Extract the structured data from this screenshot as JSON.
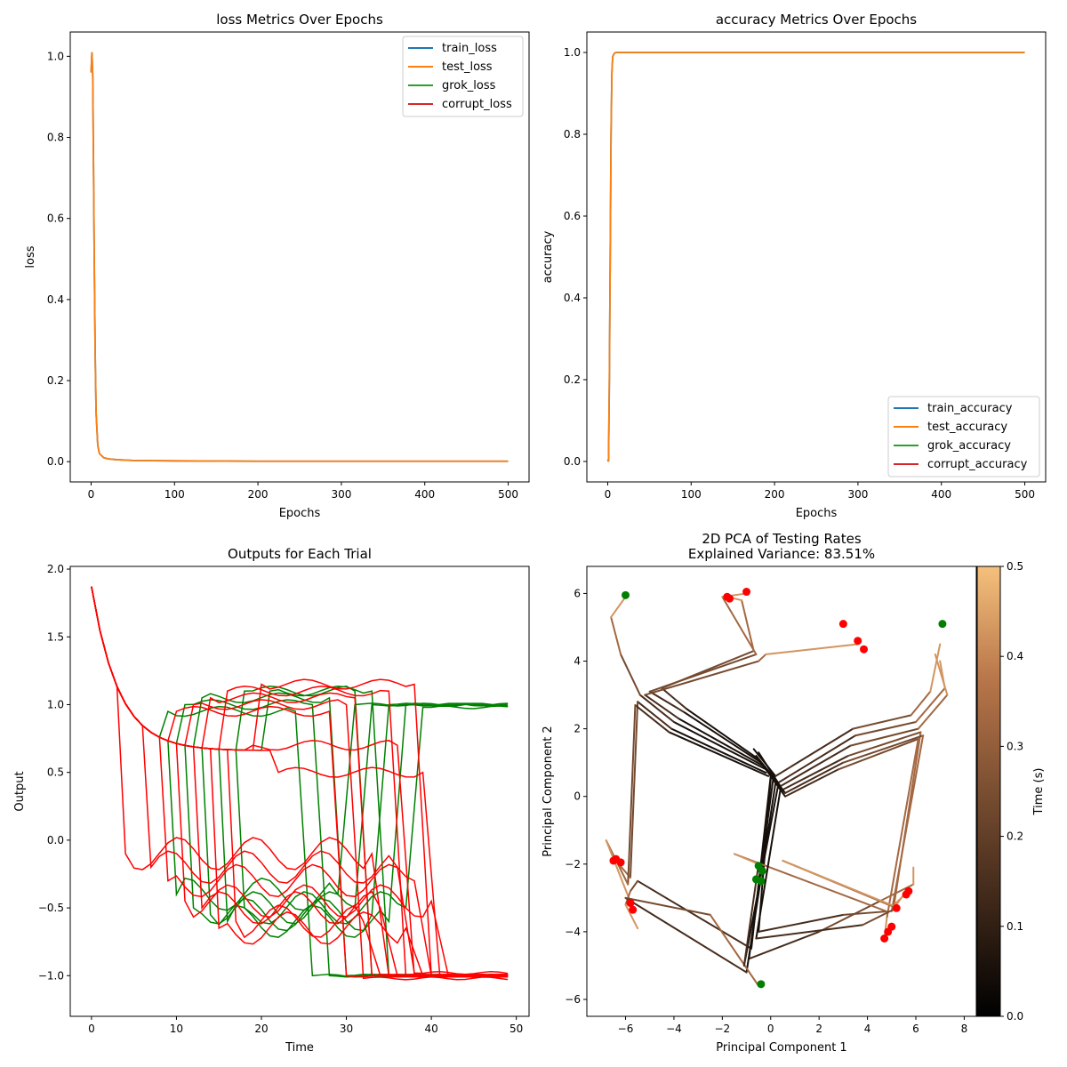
{
  "colors": {
    "train": "#1f77b4",
    "test": "#ff7f0e",
    "grok": "#2ca02c",
    "corrupt": "#d62728",
    "green_trial": "#008000",
    "red_trial": "#ff0000"
  },
  "chart_data": [
    {
      "type": "line",
      "title": "loss Metrics Over Epochs",
      "xlabel": "Epochs",
      "ylabel": "loss",
      "xlim": [
        -25,
        525
      ],
      "ylim": [
        -0.05,
        1.06
      ],
      "xticks": [
        0,
        100,
        200,
        300,
        400,
        500
      ],
      "yticks": [
        0.0,
        0.2,
        0.4,
        0.6,
        0.8,
        1.0
      ],
      "legend_position": "top-right",
      "series": [
        {
          "name": "train_loss",
          "color_key": "train",
          "x": [
            0,
            1,
            2,
            3,
            4,
            5,
            6,
            8,
            10,
            15,
            20,
            30,
            50,
            100,
            200,
            300,
            400,
            500
          ],
          "y": [
            0.96,
            1.01,
            0.95,
            0.7,
            0.45,
            0.25,
            0.12,
            0.04,
            0.02,
            0.01,
            0.007,
            0.005,
            0.003,
            0.002,
            0.001,
            0.001,
            0.001,
            0.001
          ]
        },
        {
          "name": "test_loss",
          "color_key": "test",
          "x": [
            0,
            1,
            2,
            3,
            4,
            5,
            6,
            8,
            10,
            15,
            20,
            30,
            50,
            100,
            200,
            300,
            400,
            500
          ],
          "y": [
            0.96,
            1.01,
            0.95,
            0.7,
            0.45,
            0.25,
            0.12,
            0.04,
            0.02,
            0.01,
            0.007,
            0.005,
            0.003,
            0.002,
            0.001,
            0.001,
            0.001,
            0.001
          ]
        },
        {
          "name": "grok_loss",
          "color_key": "grok",
          "x": [],
          "y": []
        },
        {
          "name": "corrupt_loss",
          "color_key": "corrupt",
          "x": [],
          "y": []
        }
      ]
    },
    {
      "type": "line",
      "title": "accuracy Metrics Over Epochs",
      "xlabel": "Epochs",
      "ylabel": "accuracy",
      "xlim": [
        -25,
        525
      ],
      "ylim": [
        -0.05,
        1.05
      ],
      "xticks": [
        0,
        100,
        200,
        300,
        400,
        500
      ],
      "yticks": [
        0.0,
        0.2,
        0.4,
        0.6,
        0.8,
        1.0
      ],
      "legend_position": "lower-right",
      "series": [
        {
          "name": "train_accuracy",
          "color_key": "train",
          "x": [
            0,
            1,
            2,
            3,
            4,
            5,
            6,
            8,
            10,
            15,
            20,
            50,
            100,
            500
          ],
          "y": [
            0.005,
            0.0,
            0.2,
            0.5,
            0.8,
            0.95,
            0.99,
            0.998,
            1.0,
            1.0,
            1.0,
            1.0,
            1.0,
            1.0
          ]
        },
        {
          "name": "test_accuracy",
          "color_key": "test",
          "x": [
            0,
            1,
            2,
            3,
            4,
            5,
            6,
            8,
            10,
            15,
            20,
            50,
            100,
            500
          ],
          "y": [
            0.005,
            0.0,
            0.2,
            0.5,
            0.8,
            0.95,
            0.99,
            0.998,
            1.0,
            1.0,
            1.0,
            1.0,
            1.0,
            1.0
          ]
        },
        {
          "name": "grok_accuracy",
          "color_key": "grok",
          "x": [],
          "y": []
        },
        {
          "name": "corrupt_accuracy",
          "color_key": "corrupt",
          "x": [],
          "y": []
        }
      ]
    },
    {
      "type": "line",
      "title": "Outputs for Each Trial",
      "xlabel": "Time",
      "ylabel": "Output",
      "xlim": [
        -2.5,
        51.5
      ],
      "ylim": [
        -1.3,
        2.02
      ],
      "xticks": [
        0,
        10,
        20,
        30,
        40,
        50
      ],
      "yticks": [
        -1.0,
        -0.5,
        0.0,
        0.5,
        1.0,
        1.5,
        2.0
      ],
      "start_value": 1.87,
      "end_time": 49,
      "trials": [
        {
          "color_key": "green_trial",
          "t1": 9,
          "low": -0.4,
          "t2": 29,
          "final": 1.0
        },
        {
          "color_key": "green_trial",
          "t1": 11,
          "low": -0.5,
          "t2": 31,
          "final": 1.0
        },
        {
          "color_key": "green_trial",
          "t1": 13,
          "low": -0.55,
          "t2": 33,
          "final": 1.0
        },
        {
          "color_key": "green_trial",
          "t1": 15,
          "low": -0.6,
          "t2": 35,
          "final": 1.0
        },
        {
          "color_key": "green_trial",
          "t1": 17,
          "low": -0.5,
          "t2": 37,
          "final": 0.98
        },
        {
          "color_key": "green_trial",
          "t1": 8,
          "low": 0.95,
          "t2": 24,
          "final": -1.0
        },
        {
          "color_key": "green_trial",
          "t1": 10,
          "low": 1.0,
          "t2": 26,
          "final": -1.0
        },
        {
          "color_key": "green_trial",
          "t1": 12,
          "low": 1.05,
          "t2": 28,
          "final": -1.0
        },
        {
          "color_key": "green_trial",
          "t1": 17,
          "low": 1.1,
          "t2": 31,
          "final": -1.0
        },
        {
          "color_key": "green_trial",
          "t1": 20,
          "low": 1.1,
          "t2": 33,
          "final": -1.0
        },
        {
          "color_key": "red_trial",
          "t1": 3,
          "low": -0.1,
          "t2": 33,
          "final": -1.0
        },
        {
          "color_key": "red_trial",
          "t1": 6,
          "low": -0.2,
          "t2": 36,
          "final": -0.98
        },
        {
          "color_key": "red_trial",
          "t1": 8,
          "low": -0.3,
          "t2": 38,
          "final": -1.0
        },
        {
          "color_key": "red_trial",
          "t1": 10,
          "low": -0.45,
          "t2": 40,
          "final": -1.0
        },
        {
          "color_key": "red_trial",
          "t1": 12,
          "low": -0.5,
          "t2": 34,
          "final": -1.0
        },
        {
          "color_key": "red_trial",
          "t1": 14,
          "low": -0.65,
          "t2": 37,
          "final": -1.0
        },
        {
          "color_key": "red_trial",
          "t1": 16,
          "low": -0.6,
          "t2": 32,
          "final": -1.0
        },
        {
          "color_key": "red_trial",
          "t1": 9,
          "low": 0.95,
          "t2": 28,
          "final": -1.0
        },
        {
          "color_key": "red_trial",
          "t1": 11,
          "low": 1.0,
          "t2": 30,
          "final": -1.02
        },
        {
          "color_key": "red_trial",
          "t1": 13,
          "low": 1.05,
          "t2": 31,
          "final": -1.0
        },
        {
          "color_key": "red_trial",
          "t1": 15,
          "low": 1.1,
          "t2": 35,
          "final": -1.0
        },
        {
          "color_key": "red_trial",
          "t1": 18,
          "low": 0.7,
          "t2": 36,
          "final": -1.0
        },
        {
          "color_key": "red_trial",
          "t1": 19,
          "low": 1.15,
          "t2": 38,
          "final": -1.0
        },
        {
          "color_key": "red_trial",
          "t1": 21,
          "low": 0.5,
          "t2": 39,
          "final": -1.0
        }
      ]
    },
    {
      "type": "line",
      "title": "2D PCA of Testing Rates",
      "subtitle": "Explained Variance: 83.51%",
      "xlabel": "Principal Component 1",
      "ylabel": "Principal Component 2",
      "xlim": [
        -7.6,
        8.5
      ],
      "ylim": [
        -6.5,
        6.8
      ],
      "xticks": [
        -6,
        -4,
        -2,
        0,
        2,
        4,
        6,
        8
      ],
      "yticks": [
        -6,
        -4,
        -2,
        0,
        2,
        4,
        6
      ],
      "colorbar": {
        "label": "Time (s)",
        "min": 0.0,
        "max": 0.5,
        "ticks": [
          0.0,
          0.1,
          0.2,
          0.3,
          0.4,
          0.5
        ]
      },
      "trajectories": [
        [
          [
            -0.7,
            1.4
          ],
          [
            0.2,
            0.6
          ],
          [
            3.4,
            2.0
          ],
          [
            5.8,
            2.4
          ],
          [
            6.6,
            3.1
          ],
          [
            7.0,
            4.5
          ]
        ],
        [
          [
            -0.6,
            1.2
          ],
          [
            0.3,
            0.4
          ],
          [
            3.5,
            1.8
          ],
          [
            6.0,
            2.2
          ],
          [
            7.2,
            3.2
          ],
          [
            7.0,
            4.0
          ]
        ],
        [
          [
            -0.5,
            1.3
          ],
          [
            0.4,
            0.3
          ],
          [
            3.3,
            1.5
          ],
          [
            6.1,
            2.0
          ],
          [
            7.3,
            3.0
          ],
          [
            6.8,
            4.2
          ]
        ],
        [
          [
            -0.4,
            1.0
          ],
          [
            0.5,
            0.2
          ],
          [
            3.2,
            1.2
          ],
          [
            6.2,
            1.9
          ],
          [
            5.1,
            -3.2
          ],
          [
            5.7,
            -2.8
          ]
        ],
        [
          [
            -0.3,
            0.9
          ],
          [
            0.6,
            0.1
          ],
          [
            3.0,
            1.0
          ],
          [
            6.3,
            1.8
          ],
          [
            5.0,
            -3.4
          ],
          [
            5.5,
            -2.9
          ]
        ],
        [
          [
            -0.2,
            0.8
          ],
          [
            0.6,
            0.0
          ],
          [
            2.8,
            0.8
          ],
          [
            6.1,
            1.7
          ],
          [
            4.8,
            -3.6
          ],
          [
            4.7,
            -4.2
          ]
        ],
        [
          [
            -0.5,
            1.1
          ],
          [
            -3.5,
            2.6
          ],
          [
            -4.5,
            3.2
          ],
          [
            -0.7,
            4.3
          ],
          [
            -1.2,
            5.8
          ],
          [
            -1.8,
            5.9
          ]
        ],
        [
          [
            -0.4,
            1.0
          ],
          [
            -3.6,
            2.5
          ],
          [
            -5.0,
            3.1
          ],
          [
            -0.6,
            4.2
          ],
          [
            -2.0,
            5.9
          ],
          [
            -1.0,
            6.0
          ]
        ],
        [
          [
            -0.3,
            0.9
          ],
          [
            -3.8,
            2.3
          ],
          [
            -5.2,
            3.0
          ],
          [
            -0.5,
            4.0
          ],
          [
            -0.2,
            4.2
          ],
          [
            3.6,
            4.5
          ]
        ],
        [
          [
            -0.2,
            0.8
          ],
          [
            -4.0,
            2.2
          ],
          [
            -5.4,
            3.0
          ],
          [
            -6.2,
            4.2
          ],
          [
            -6.6,
            5.3
          ],
          [
            -6.0,
            5.9
          ]
        ],
        [
          [
            -0.2,
            0.7
          ],
          [
            -4.1,
            2.0
          ],
          [
            -5.5,
            2.8
          ],
          [
            -5.8,
            -2.4
          ],
          [
            -6.4,
            -1.9
          ],
          [
            -6.2,
            -1.9
          ]
        ],
        [
          [
            -0.1,
            0.6
          ],
          [
            -4.2,
            1.9
          ],
          [
            -5.6,
            2.7
          ],
          [
            -5.9,
            -2.6
          ],
          [
            -6.8,
            -1.3
          ],
          [
            -5.7,
            -3.3
          ]
        ],
        [
          [
            0.0,
            0.6
          ],
          [
            -0.8,
            -4.5
          ],
          [
            -5.5,
            -2.5
          ],
          [
            -5.8,
            -2.8
          ],
          [
            -6.0,
            -3.2
          ],
          [
            -5.5,
            -3.9
          ]
        ],
        [
          [
            0.1,
            0.5
          ],
          [
            -0.9,
            -4.8
          ],
          [
            2.0,
            -4.0
          ],
          [
            4.5,
            -3.1
          ],
          [
            5.9,
            -2.6
          ],
          [
            5.9,
            -2.1
          ]
        ],
        [
          [
            0.2,
            0.4
          ],
          [
            -1.0,
            -5.2
          ],
          [
            -6.0,
            -3.0
          ],
          [
            -2.5,
            -3.5
          ],
          [
            -0.5,
            -5.6
          ],
          [
            -0.4,
            -5.5
          ]
        ],
        [
          [
            0.3,
            0.3
          ],
          [
            -1.1,
            -5.0
          ],
          [
            -0.5,
            -2.0
          ],
          [
            -0.3,
            -2.3
          ],
          [
            -0.4,
            -2.4
          ],
          [
            -0.2,
            -2.5
          ]
        ],
        [
          [
            0.0,
            0.5
          ],
          [
            -0.5,
            -4.0
          ],
          [
            3.0,
            -3.5
          ],
          [
            4.8,
            -3.4
          ],
          [
            -1.5,
            -1.7
          ],
          [
            -0.5,
            -2.0
          ]
        ],
        [
          [
            0.4,
            0.2
          ],
          [
            -0.6,
            -4.2
          ],
          [
            3.8,
            -3.8
          ],
          [
            5.2,
            -3.3
          ],
          [
            0.5,
            -1.9
          ],
          [
            5.3,
            -3.3
          ]
        ]
      ],
      "start_points": [
        [
          -6.0,
          5.95
        ],
        [
          7.1,
          5.1
        ],
        [
          -0.5,
          -2.05
        ],
        [
          -0.6,
          -2.45
        ],
        [
          -0.4,
          -2.5
        ],
        [
          -0.35,
          -2.2
        ],
        [
          -0.4,
          -5.55
        ]
      ],
      "end_points": [
        [
          -1.8,
          5.9
        ],
        [
          -1.7,
          5.85
        ],
        [
          -1.0,
          6.05
        ],
        [
          3.0,
          5.1
        ],
        [
          3.6,
          4.6
        ],
        [
          3.85,
          4.35
        ],
        [
          -6.4,
          -1.85
        ],
        [
          -6.2,
          -1.95
        ],
        [
          -6.5,
          -1.9
        ],
        [
          -5.8,
          -3.15
        ],
        [
          -5.7,
          -3.35
        ],
        [
          5.7,
          -2.8
        ],
        [
          5.6,
          -2.9
        ],
        [
          5.2,
          -3.3
        ],
        [
          5.0,
          -3.85
        ],
        [
          4.85,
          -4.0
        ],
        [
          4.7,
          -4.2
        ]
      ]
    }
  ]
}
